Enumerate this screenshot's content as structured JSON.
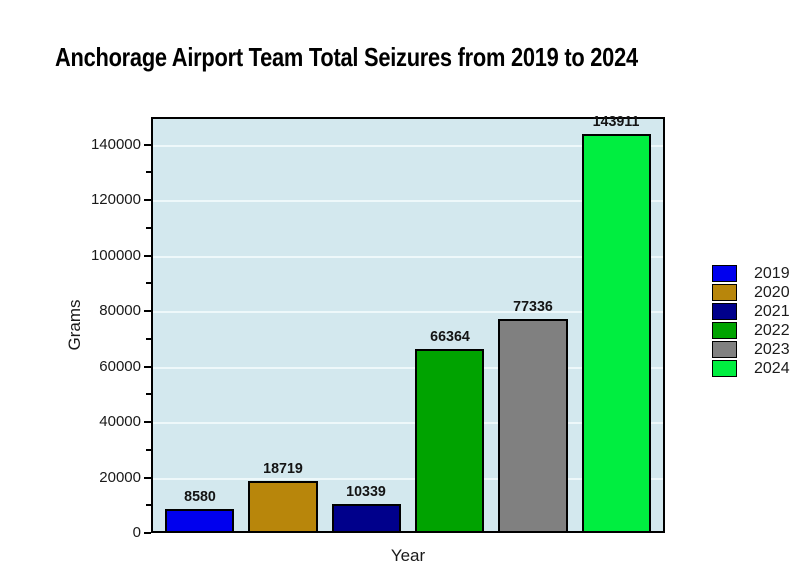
{
  "chart_data": {
    "type": "bar",
    "title": "Anchorage Airport Team Total Seizures from 2019 to 2024",
    "xlabel": "Year",
    "ylabel": "Grams",
    "categories": [
      "2019",
      "2020",
      "2021",
      "2022",
      "2023",
      "2024"
    ],
    "values": [
      8580,
      18719,
      10339,
      66364,
      77336,
      143911
    ],
    "value_labels": [
      "8580",
      "18719",
      "10339",
      "66364",
      "77336",
      "143911"
    ],
    "bar_colors": [
      "#0000ee",
      "#b8860b",
      "#00008b",
      "#00a300",
      "#808080",
      "#00ee40"
    ],
    "ylim": [
      0,
      150000
    ],
    "yticks_labeled": [
      0,
      20000,
      40000,
      60000,
      80000,
      100000,
      120000,
      140000
    ],
    "yticks_minor": [
      10000,
      30000,
      50000,
      70000,
      90000,
      110000,
      130000
    ],
    "grid": true,
    "legend_position": "right",
    "legend_entries": [
      {
        "label": "2019",
        "color": "#0000ee"
      },
      {
        "label": "2020",
        "color": "#b8860b"
      },
      {
        "label": "2021",
        "color": "#00008b"
      },
      {
        "label": "2022",
        "color": "#00a300"
      },
      {
        "label": "2023",
        "color": "#808080"
      },
      {
        "label": "2024",
        "color": "#00ee40"
      }
    ],
    "colors": {
      "plot_bg": "#d3e8ee",
      "gridline": "#eef8fa",
      "axis": "#000000",
      "text": "#1a1a1a"
    }
  }
}
